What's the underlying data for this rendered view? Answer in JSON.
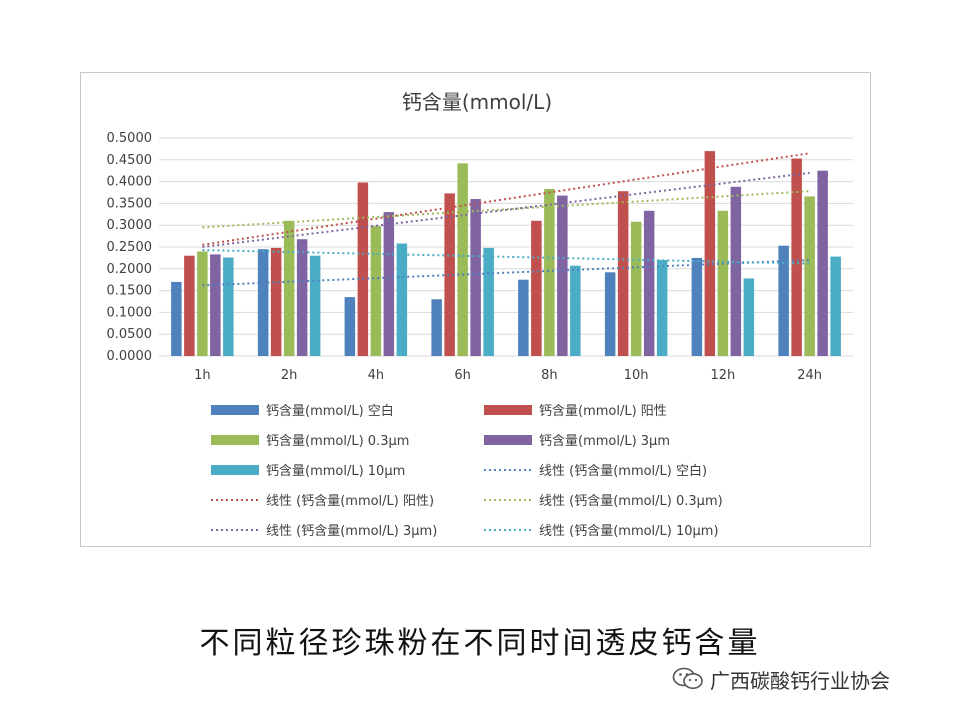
{
  "chart_data": {
    "type": "bar",
    "title": "钙含量(mmol/L)",
    "categories": [
      "1h",
      "2h",
      "4h",
      "6h",
      "8h",
      "10h",
      "12h",
      "24h"
    ],
    "ylim": [
      0,
      0.5
    ],
    "yticks": [
      "0.5000",
      "0.4500",
      "0.4000",
      "0.3500",
      "0.3000",
      "0.2500",
      "0.2000",
      "0.1500",
      "0.1000",
      "0.0500",
      "0.0000"
    ],
    "grid": true,
    "legend_position": "bottom",
    "series": [
      {
        "name": "钙含量(mmol/L) 空白",
        "color": "#4f81bd",
        "values": [
          0.17,
          0.245,
          0.135,
          0.13,
          0.175,
          0.192,
          0.225,
          0.253
        ]
      },
      {
        "name": "钙含量(mmol/L) 阳性",
        "color": "#c0504d",
        "values": [
          0.23,
          0.248,
          0.398,
          0.373,
          0.31,
          0.378,
          0.47,
          0.453
        ]
      },
      {
        "name": "钙含量(mmol/L) 0.3μm",
        "color": "#9bbb59",
        "values": [
          0.24,
          0.31,
          0.298,
          0.442,
          0.383,
          0.308,
          0.333,
          0.366
        ]
      },
      {
        "name": "钙含量(mmol/L) 3μm",
        "color": "#8064a2",
        "values": [
          0.233,
          0.268,
          0.33,
          0.36,
          0.368,
          0.333,
          0.388,
          0.425
        ]
      },
      {
        "name": "钙含量(mmol/L) 10μm",
        "color": "#4bacc6",
        "values": [
          0.226,
          0.23,
          0.258,
          0.248,
          0.207,
          0.22,
          0.178,
          0.228
        ]
      }
    ],
    "trendlines": [
      {
        "name": "线性 (钙含量(mmol/L) 空白)",
        "color": "#4f81bd",
        "start": 0.162,
        "end": 0.22
      },
      {
        "name": "线性 (钙含量(mmol/L) 阳性)",
        "color": "#c0504d",
        "start": 0.255,
        "end": 0.465
      },
      {
        "name": "线性 (钙含量(mmol/L) 0.3μm)",
        "color": "#9bbb59",
        "start": 0.295,
        "end": 0.378
      },
      {
        "name": "线性 (钙含量(mmol/L) 3μm)",
        "color": "#8064a2",
        "start": 0.25,
        "end": 0.42
      },
      {
        "name": "线性 (钙含量(mmol/L) 10μm)",
        "color": "#4bacc6",
        "start": 0.243,
        "end": 0.212
      }
    ]
  },
  "caption": "不同粒径珍珠粉在不同时间透皮钙含量",
  "watermark": {
    "text": "广西碳酸钙行业协会",
    "icon": "wechat-icon"
  }
}
